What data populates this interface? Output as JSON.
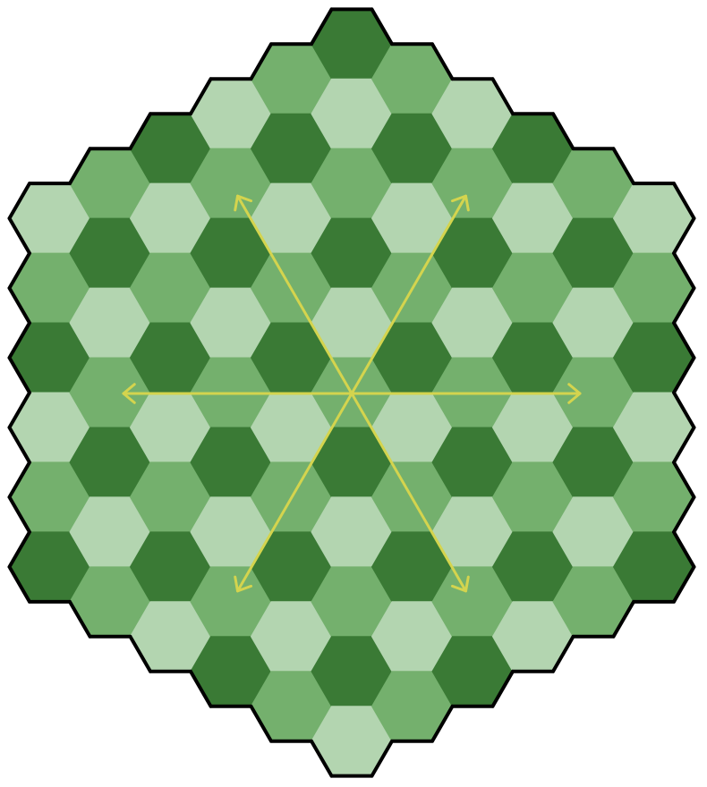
{
  "board": {
    "type": "hexagonal-board",
    "cells_per_side": 6,
    "total_cells": 91,
    "cell_shades": [
      "dark",
      "medium",
      "light"
    ],
    "colors": {
      "dark": "#3a7a35",
      "medium": "#74b06d",
      "light": "#b3d5b0",
      "outline": "#000000",
      "arrows": "#d4d44e",
      "background": "#ffffff"
    }
  },
  "overlay": {
    "arrows": {
      "count": 6,
      "directions": [
        "left",
        "right",
        "upper-left",
        "upper-right",
        "lower-left",
        "lower-right"
      ],
      "origin": "center cell"
    }
  }
}
